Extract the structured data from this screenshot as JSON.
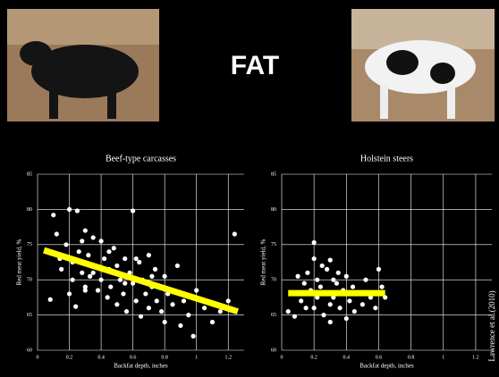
{
  "title": "FAT",
  "source": "Lawrence et al.(2010)",
  "chart_data": [
    {
      "type": "scatter",
      "title": "Beef-type carcasses",
      "x_label": "Backfat depth, inches",
      "y_label": "Red meat yield, %",
      "xlim": [
        0,
        1.3
      ],
      "xticks": [
        0,
        0.2,
        0.4,
        0.6,
        0.8,
        1,
        1.2
      ],
      "ylim": [
        60,
        85
      ],
      "yticks": [
        60,
        65,
        70,
        75,
        80,
        85
      ],
      "grid": true,
      "color": "#ffffff",
      "x": [
        0.08,
        0.1,
        0.12,
        0.14,
        0.15,
        0.18,
        0.2,
        0.2,
        0.22,
        0.24,
        0.25,
        0.26,
        0.28,
        0.3,
        0.3,
        0.32,
        0.33,
        0.35,
        0.36,
        0.38,
        0.4,
        0.4,
        0.42,
        0.44,
        0.45,
        0.46,
        0.48,
        0.5,
        0.5,
        0.52,
        0.54,
        0.55,
        0.56,
        0.58,
        0.6,
        0.6,
        0.62,
        0.64,
        0.65,
        0.66,
        0.68,
        0.7,
        0.7,
        0.72,
        0.74,
        0.75,
        0.78,
        0.8,
        0.8,
        0.82,
        0.85,
        0.88,
        0.9,
        0.92,
        0.95,
        0.98,
        1.0,
        1.05,
        1.1,
        1.15,
        1.2,
        1.24,
        0.22,
        0.28,
        0.35,
        0.45,
        0.55,
        0.62,
        0.72,
        0.3
      ],
      "values": [
        67.2,
        79.2,
        76.5,
        73,
        71.5,
        75,
        80,
        68,
        72.5,
        66.2,
        79.8,
        74,
        71,
        77,
        69,
        73.5,
        70.5,
        76,
        72,
        68.5,
        75.5,
        70,
        73,
        67.5,
        71.5,
        69,
        74.5,
        72,
        66.5,
        70,
        68,
        73,
        65.5,
        71,
        79.8,
        69.5,
        67,
        72.5,
        64.8,
        70,
        68,
        73.5,
        66,
        69,
        71.5,
        67,
        65.5,
        70.5,
        64,
        68,
        66.5,
        72,
        63.5,
        67,
        65,
        62,
        68.5,
        66,
        64,
        65.5,
        67,
        76.5,
        70,
        75.5,
        71,
        74,
        69.5,
        73,
        70.5,
        68.5
      ],
      "trend": {
        "x": [
          0.04,
          1.26
        ],
        "values": [
          74.2,
          65.5
        ],
        "color": "#ffff00"
      }
    },
    {
      "type": "scatter",
      "title": "Holstein steers",
      "x_label": "Backfat depth, inches",
      "y_label": "Red meat yield, %",
      "xlim": [
        0,
        1.3
      ],
      "xticks": [
        0,
        0.2,
        0.4,
        0.6,
        0.8,
        1,
        1.2
      ],
      "ylim": [
        60,
        85
      ],
      "yticks": [
        60,
        65,
        70,
        75,
        80,
        85
      ],
      "grid": true,
      "color": "#ffffff",
      "x": [
        0.04,
        0.08,
        0.1,
        0.12,
        0.14,
        0.15,
        0.16,
        0.18,
        0.2,
        0.2,
        0.2,
        0.22,
        0.22,
        0.24,
        0.25,
        0.26,
        0.28,
        0.28,
        0.3,
        0.3,
        0.32,
        0.32,
        0.34,
        0.35,
        0.36,
        0.38,
        0.4,
        0.4,
        0.42,
        0.44,
        0.45,
        0.48,
        0.5,
        0.52,
        0.55,
        0.58,
        0.6,
        0.62,
        0.64,
        0.3
      ],
      "values": [
        65.5,
        64.8,
        70.5,
        67,
        69.5,
        66,
        71,
        68.5,
        75.3,
        73,
        66,
        70,
        67.5,
        69,
        72,
        65,
        71.5,
        68,
        72.8,
        66.5,
        70,
        67.5,
        69.5,
        71,
        66,
        68.5,
        70.5,
        64.5,
        67,
        69,
        65.5,
        68,
        66.5,
        70,
        67.5,
        66,
        71.5,
        69,
        67.5,
        64
      ],
      "trend": {
        "x": [
          0.04,
          0.64
        ],
        "values": [
          68.1,
          68.1
        ],
        "color": "#ffff00"
      }
    }
  ]
}
